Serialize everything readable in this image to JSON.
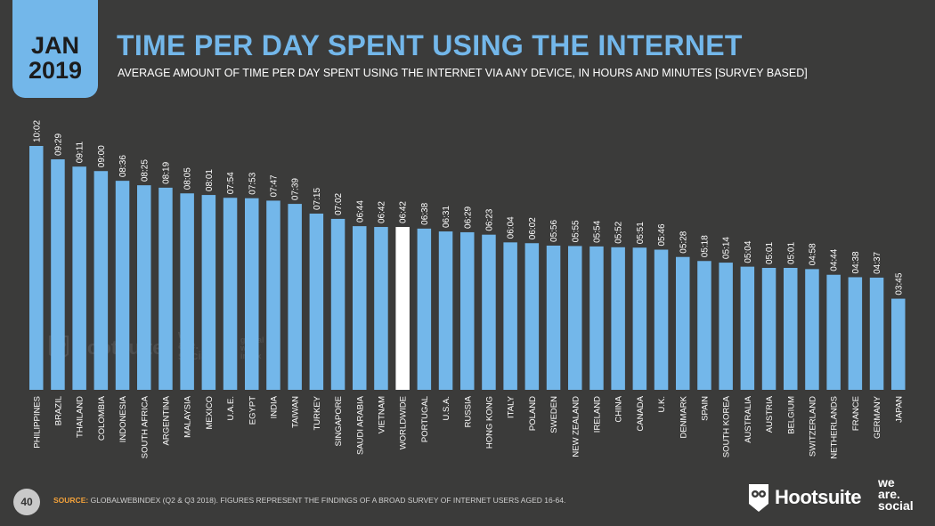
{
  "header": {
    "month": "JAN",
    "year": "2019",
    "title": "TIME PER DAY SPENT USING THE INTERNET",
    "subtitle": "AVERAGE AMOUNT OF TIME PER DAY SPENT USING THE INTERNET VIA ANY DEVICE, IN HOURS AND MINUTES [SURVEY BASED]"
  },
  "footer": {
    "page_number": "40",
    "source_label": "SOURCE:",
    "source_text": "GLOBALWEBINDEX (Q2 & Q3 2018). FIGURES REPRESENT THE FINDINGS OF A BROAD SURVEY OF INTERNET USERS AGED 16-64.",
    "logo_hootsuite": "Hootsuite",
    "logo_we": "we",
    "logo_are": "are.",
    "logo_social": "social"
  },
  "watermarks": {
    "hootsuite": "Hootsuite",
    "we": "we",
    "are": "are.",
    "social": "social",
    "gwi_1": "global",
    "gwi_2": "web",
    "gwi_3": "index"
  },
  "colors": {
    "background": "#3b3b3a",
    "bar": "#73b7ea",
    "highlight_bar": "#ffffff",
    "accent": "#73b7ea",
    "source_label": "#f2a13a"
  },
  "chart_data": {
    "type": "bar",
    "highlight": "WORLDWIDE",
    "ylim": [
      0,
      10.5
    ],
    "categories": [
      "PHILIPPINES",
      "BRAZIL",
      "THAILAND",
      "COLOMBIA",
      "INDONESIA",
      "SOUTH AFRICA",
      "ARGENTINA",
      "MALAYSIA",
      "MEXICO",
      "U.A.E.",
      "EGYPT",
      "INDIA",
      "TAIWAN",
      "TURKEY",
      "SINGAPORE",
      "SAUDI ARABIA",
      "VIETNAM",
      "WORLDWIDE",
      "PORTUGAL",
      "U.S.A.",
      "RUSSIA",
      "HONG KONG",
      "ITALY",
      "POLAND",
      "SWEDEN",
      "NEW ZEALAND",
      "IRELAND",
      "CHINA",
      "CANADA",
      "U.K.",
      "DENMARK",
      "SPAIN",
      "SOUTH KOREA",
      "AUSTRALIA",
      "AUSTRIA",
      "BELGIUM",
      "SWITZERLAND",
      "NETHERLANDS",
      "FRANCE",
      "GERMANY",
      "JAPAN"
    ],
    "labels": [
      "10:02",
      "09:29",
      "09:11",
      "09:00",
      "08:36",
      "08:25",
      "08:19",
      "08:05",
      "08:01",
      "07:54",
      "07:53",
      "07:47",
      "07:39",
      "07:15",
      "07:02",
      "06:44",
      "06:42",
      "06:42",
      "06:38",
      "06:31",
      "06:29",
      "06:23",
      "06:04",
      "06:02",
      "05:56",
      "05:55",
      "05:54",
      "05:52",
      "05:51",
      "05:46",
      "05:28",
      "05:18",
      "05:14",
      "05:04",
      "05:01",
      "05:01",
      "04:58",
      "04:44",
      "04:38",
      "04:37",
      "03:45"
    ]
  }
}
